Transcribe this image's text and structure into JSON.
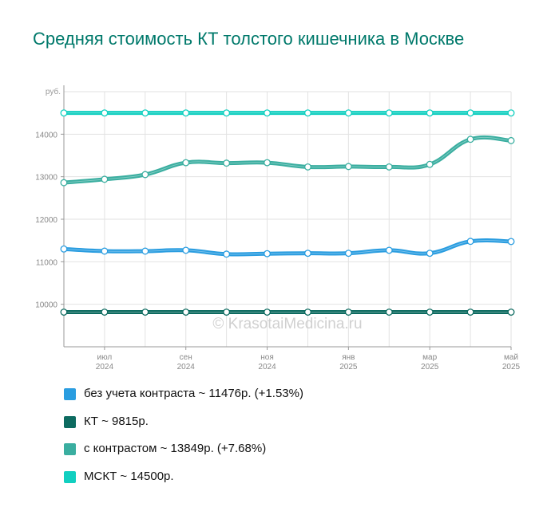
{
  "title": "Средняя стоимость КТ толстого кишечника в Москве",
  "watermark": "© KrasotaiMedicina.ru",
  "chart_data": {
    "type": "line",
    "ylabel": "руб.",
    "ylim": [
      9000,
      15000
    ],
    "yticks": [
      10000,
      11000,
      12000,
      13000,
      14000
    ],
    "x": [
      "2024-06",
      "2024-07",
      "2024-08",
      "2024-09",
      "2024-10",
      "2024-11",
      "2024-12",
      "2025-01",
      "2025-02",
      "2025-03",
      "2025-04",
      "2025-05"
    ],
    "xticks": [
      {
        "index": 1,
        "month": "июл",
        "year": "2024"
      },
      {
        "index": 3,
        "month": "сен",
        "year": "2024"
      },
      {
        "index": 5,
        "month": "ноя",
        "year": "2024"
      },
      {
        "index": 7,
        "month": "янв",
        "year": "2025"
      },
      {
        "index": 9,
        "month": "мар",
        "year": "2025"
      },
      {
        "index": 11,
        "month": "май",
        "year": "2025"
      }
    ],
    "grid": true,
    "legend_position": "bottom",
    "series": [
      {
        "name": "без учета контраста",
        "color": "#2a9de0",
        "legend_label": "без учета контраста ~ 11476р. (+1.53%)",
        "values": [
          11300,
          11250,
          11250,
          11270,
          11180,
          11190,
          11200,
          11200,
          11270,
          11200,
          11480,
          11476
        ]
      },
      {
        "name": "КТ",
        "color": "#0d6b60",
        "legend_label": "КТ ~ 9815р.",
        "values": [
          9815,
          9815,
          9815,
          9815,
          9815,
          9815,
          9815,
          9815,
          9815,
          9815,
          9815,
          9815
        ]
      },
      {
        "name": "с контрастом",
        "color": "#3aaea0",
        "legend_label": "с контрастом ~ 13849р. (+7.68%)",
        "values": [
          12860,
          12940,
          13050,
          13330,
          13320,
          13330,
          13230,
          13240,
          13230,
          13290,
          13880,
          13849
        ]
      },
      {
        "name": "МСКТ",
        "color": "#11cfc0",
        "legend_label": "МСКТ ~ 14500р.",
        "values": [
          14500,
          14500,
          14500,
          14500,
          14500,
          14500,
          14500,
          14500,
          14500,
          14500,
          14500,
          14500
        ]
      }
    ]
  }
}
